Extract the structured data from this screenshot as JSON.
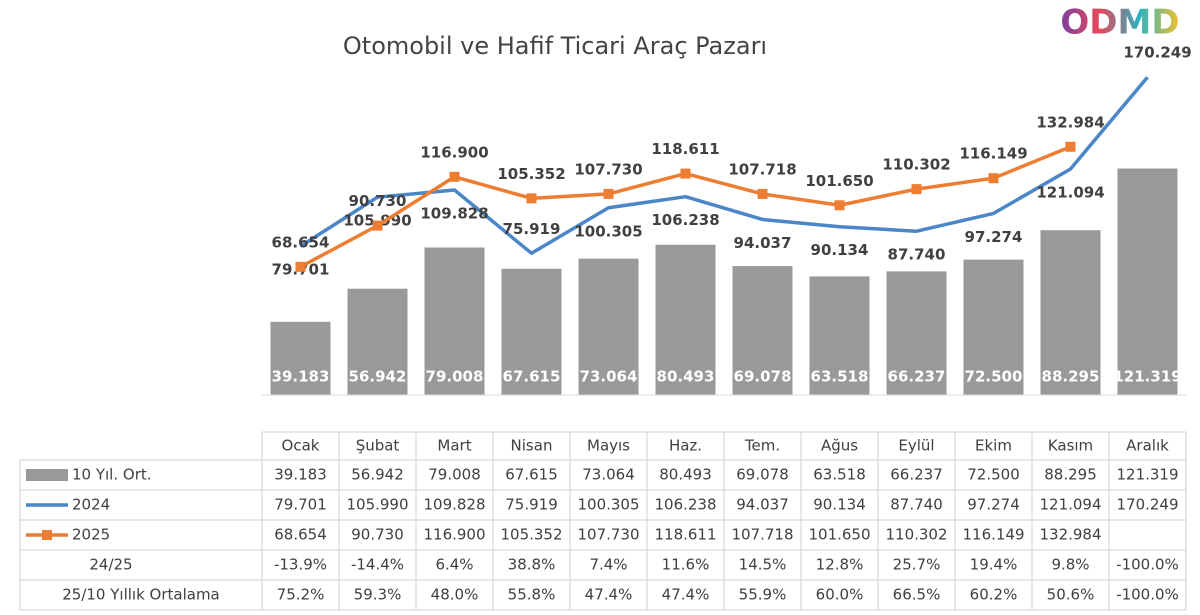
{
  "chart_data": {
    "type": "combo",
    "title": "Otomobil ve Hafif Ticari Araç Pazarı",
    "logo": "ODMD",
    "categories": [
      "Ocak",
      "Şubat",
      "Mart",
      "Nisan",
      "Mayıs",
      "Haz.",
      "Tem.",
      "Ağus",
      "Eylül",
      "Ekim",
      "Kasım",
      "Aralık"
    ],
    "ylim": [
      0,
      180000
    ],
    "series": [
      {
        "name": "10 Yıl. Ort.",
        "kind": "bar",
        "color": "#999999",
        "values": [
          39183,
          56942,
          79008,
          67615,
          73064,
          80493,
          69078,
          63518,
          66237,
          72500,
          88295,
          121319
        ],
        "value_labels": [
          "39.183",
          "56.942",
          "79.008",
          "67.615",
          "73.064",
          "80.493",
          "69.078",
          "63.518",
          "66.237",
          "72.500",
          "88.295",
          "121.319"
        ]
      },
      {
        "name": "2024",
        "kind": "line",
        "color": "#4a86c8",
        "values": [
          79701,
          105990,
          109828,
          75919,
          100305,
          106238,
          94037,
          90134,
          87740,
          97274,
          121094,
          170249
        ],
        "value_labels": [
          "79.701",
          "105.990",
          "109.828",
          "75.919",
          "100.305",
          "106.238",
          "94.037",
          "90.134",
          "87.740",
          "97.274",
          "121.094",
          "170.249"
        ]
      },
      {
        "name": "2025",
        "kind": "line",
        "color": "#ed7d31",
        "marker": "square",
        "values": [
          68654,
          90730,
          116900,
          105352,
          107730,
          118611,
          107718,
          101650,
          110302,
          116149,
          132984,
          null
        ],
        "value_labels": [
          "68.654",
          "90.730",
          "116.900",
          "105.352",
          "107.730",
          "118.611",
          "107.718",
          "101.650",
          "110.302",
          "116.149",
          "132.984",
          null
        ]
      }
    ],
    "extra_rows": [
      {
        "label": "24/25",
        "cells": [
          "-13.9%",
          "-14.4%",
          "6.4%",
          "38.8%",
          "7.4%",
          "11.6%",
          "14.5%",
          "12.8%",
          "25.7%",
          "19.4%",
          "9.8%",
          "-100.0%"
        ]
      },
      {
        "label": "25/10 Yıllık Ortalama",
        "cells": [
          "75.2%",
          "59.3%",
          "48.0%",
          "55.8%",
          "47.4%",
          "47.4%",
          "55.9%",
          "60.0%",
          "66.5%",
          "60.2%",
          "50.6%",
          "-100.0%"
        ]
      }
    ]
  }
}
